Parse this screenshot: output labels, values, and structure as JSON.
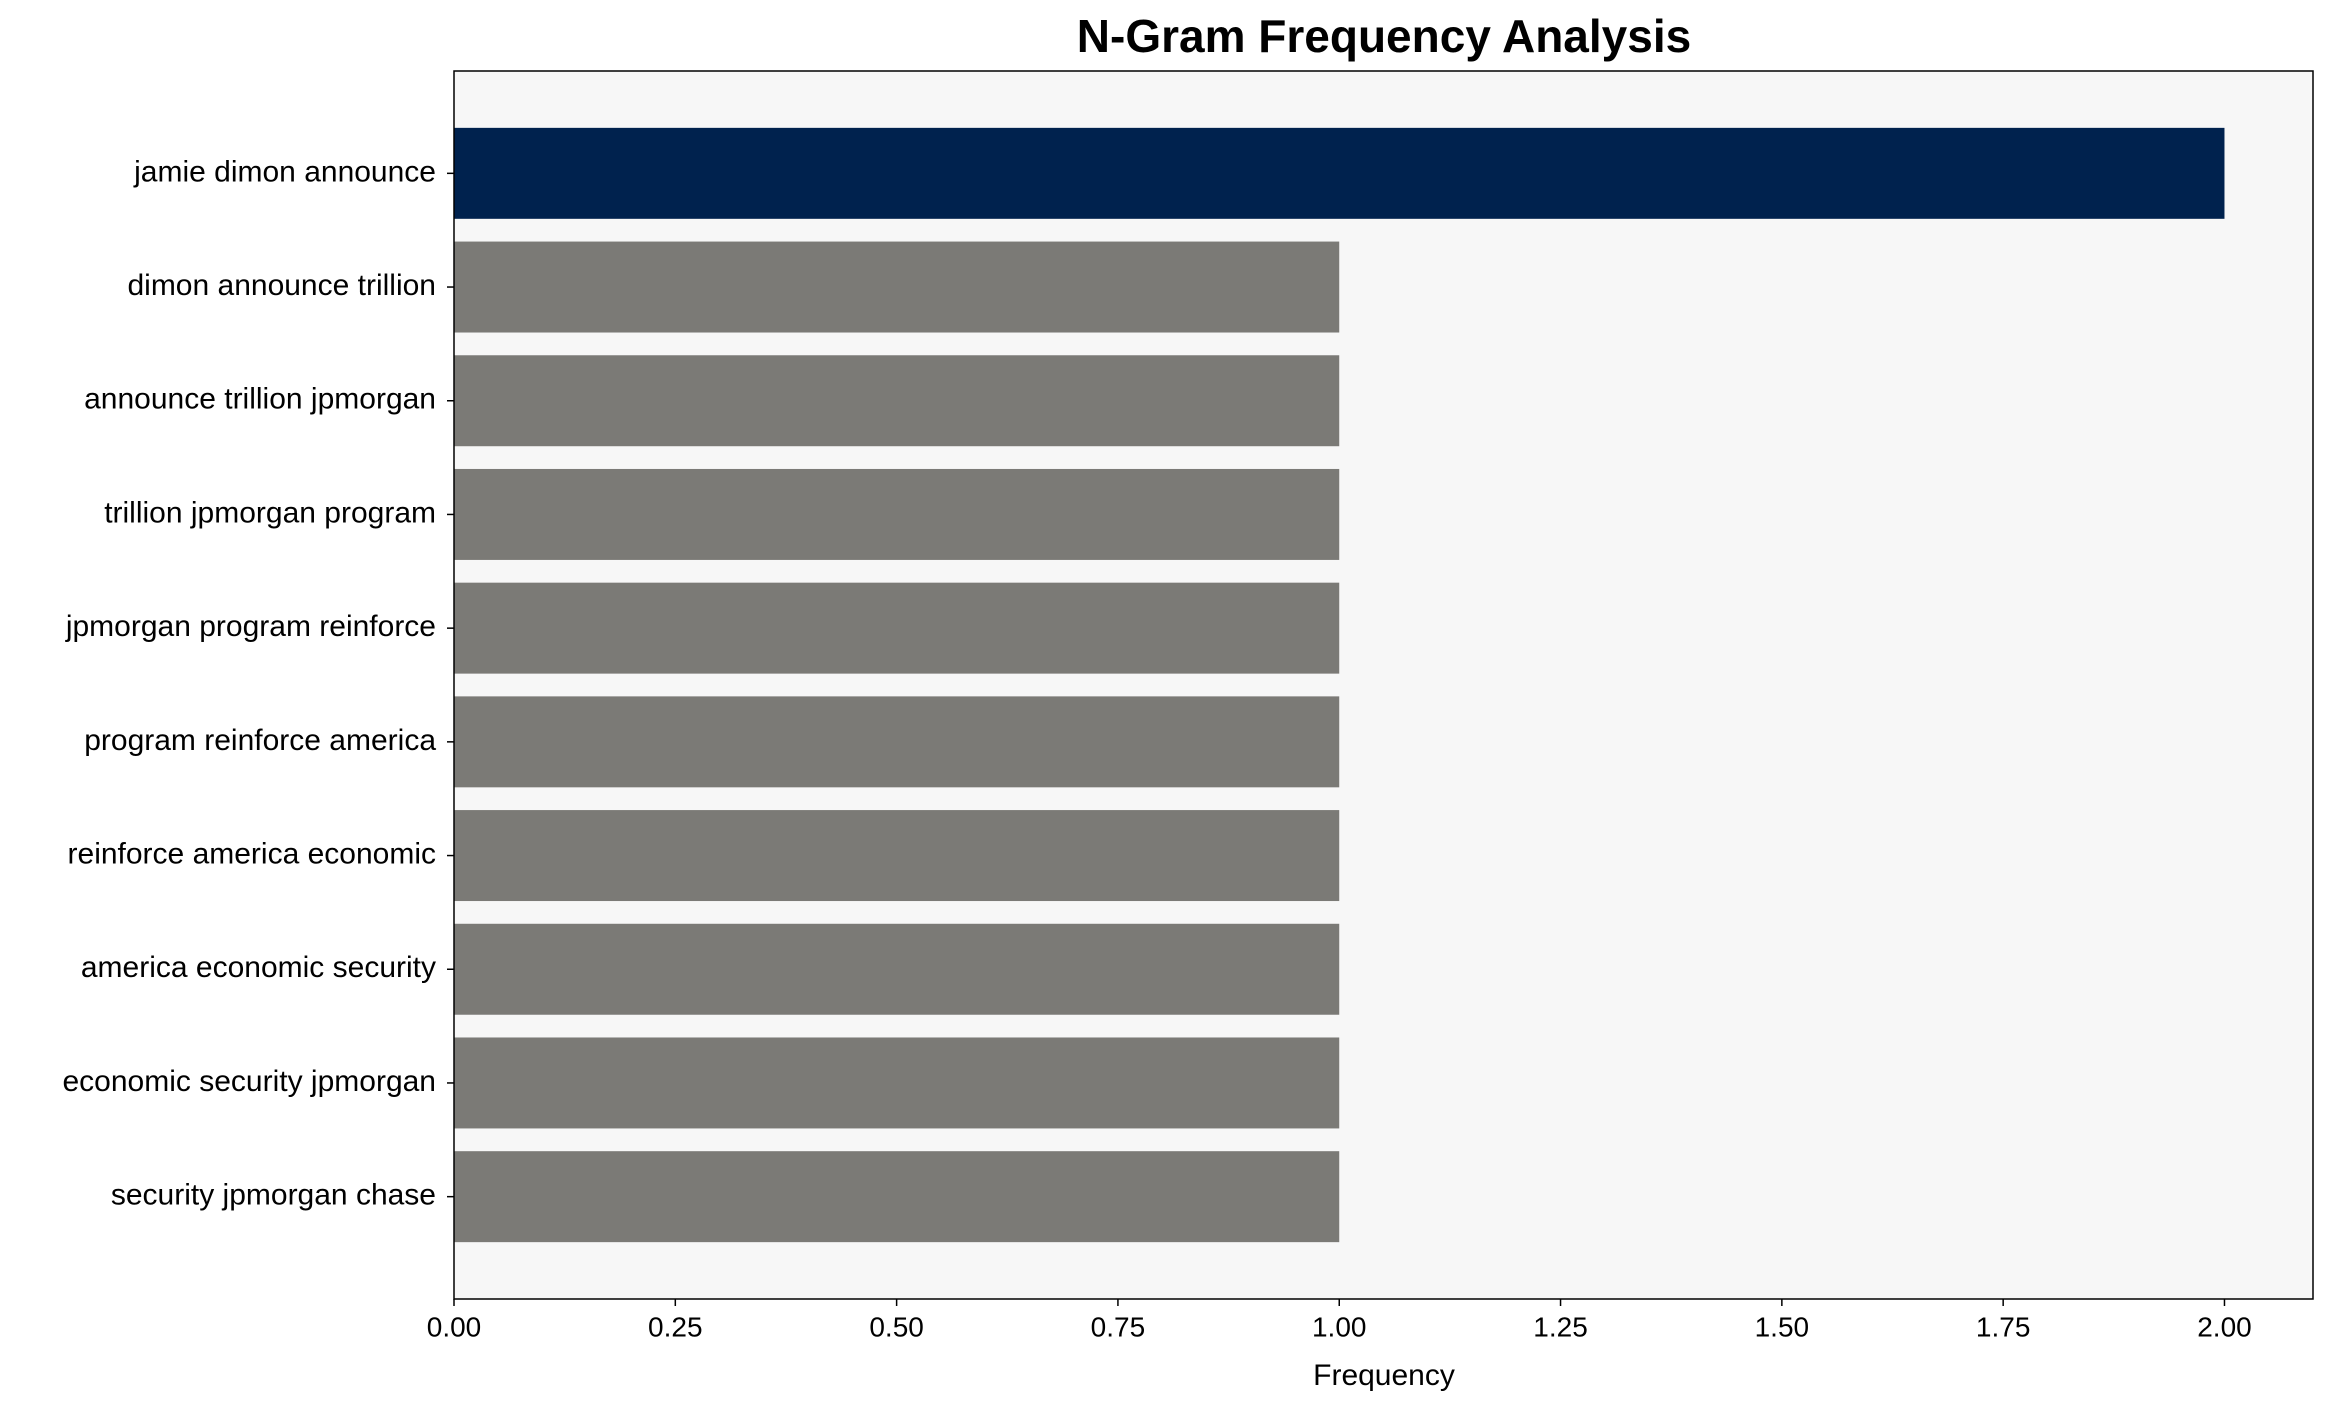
{
  "chart_data": {
    "type": "bar",
    "orientation": "horizontal",
    "title": "N-Gram Frequency Analysis",
    "xlabel": "Frequency",
    "categories": [
      "jamie dimon announce",
      "dimon announce trillion",
      "announce trillion jpmorgan",
      "trillion jpmorgan program",
      "jpmorgan program reinforce",
      "program reinforce america",
      "reinforce america economic",
      "america economic security",
      "economic security jpmorgan",
      "security jpmorgan chase"
    ],
    "values": [
      2,
      1,
      1,
      1,
      1,
      1,
      1,
      1,
      1,
      1
    ],
    "colors": [
      "#00224e",
      "#7b7a76",
      "#7b7a76",
      "#7b7a76",
      "#7b7a76",
      "#7b7a76",
      "#7b7a76",
      "#7b7a76",
      "#7b7a76",
      "#7b7a76"
    ],
    "xlim": [
      0,
      2.1
    ],
    "xticks": [
      {
        "value": 0,
        "label": "0.00"
      },
      {
        "value": 0.25,
        "label": "0.25"
      },
      {
        "value": 0.5,
        "label": "0.50"
      },
      {
        "value": 0.75,
        "label": "0.75"
      },
      {
        "value": 1,
        "label": "1.00"
      },
      {
        "value": 1.25,
        "label": "1.25"
      },
      {
        "value": 1.5,
        "label": "1.50"
      },
      {
        "value": 1.75,
        "label": "1.75"
      },
      {
        "value": 2,
        "label": "2.00"
      }
    ],
    "grid": false
  }
}
